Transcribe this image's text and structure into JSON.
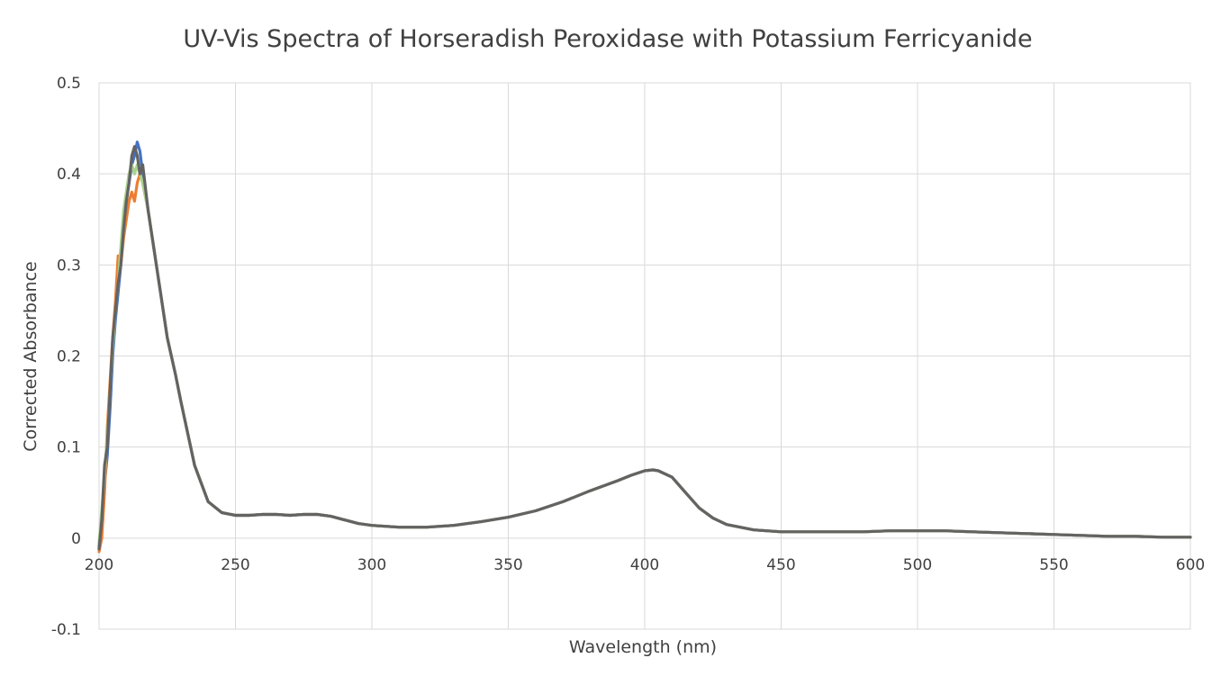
{
  "chart_data": {
    "type": "line",
    "title": "UV-Vis Spectra of Horseradish Peroxidase with Potassium Ferricyanide",
    "xlabel": "Wavelength (nm)",
    "ylabel": "Corrected Absorbance",
    "xlim": [
      200,
      600
    ],
    "ylim": [
      -0.1,
      0.5
    ],
    "x_ticks": [
      200,
      250,
      300,
      350,
      400,
      450,
      500,
      550,
      600
    ],
    "x_tick_labels": [
      "200",
      "250",
      "300",
      "350",
      "400",
      "450",
      "500",
      "550",
      "600"
    ],
    "y_ticks": [
      -0.1,
      0,
      0.1,
      0.2,
      0.3,
      0.4,
      0.5
    ],
    "y_tick_labels": [
      "-0.1",
      "0",
      "0.1",
      "0.2",
      "0.3",
      "0.4",
      "0.5"
    ],
    "grid": true,
    "legend": "none",
    "series": [
      {
        "color": "#4472c4",
        "x": [
          200,
          201,
          202,
          203,
          204,
          205,
          206,
          207,
          208,
          209,
          210,
          211,
          212,
          213,
          214,
          215,
          216,
          218,
          220,
          222,
          225,
          228,
          230,
          235,
          240,
          245,
          250,
          255,
          260,
          265,
          270,
          275,
          280,
          285,
          290,
          295,
          300,
          310,
          320,
          330,
          340,
          350,
          360,
          370,
          380,
          390,
          395,
          400,
          403,
          405,
          410,
          415,
          420,
          425,
          430,
          440,
          450,
          460,
          470,
          480,
          490,
          500,
          510,
          520,
          530,
          540,
          550,
          560,
          570,
          580,
          590,
          600
        ],
        "y": [
          -0.01,
          0.02,
          0.06,
          0.09,
          0.14,
          0.2,
          0.24,
          0.27,
          0.3,
          0.34,
          0.37,
          0.39,
          0.41,
          0.42,
          0.435,
          0.425,
          0.4,
          0.36,
          0.32,
          0.28,
          0.22,
          0.18,
          0.15,
          0.08,
          0.04,
          0.028,
          0.025,
          0.025,
          0.026,
          0.026,
          0.025,
          0.026,
          0.026,
          0.024,
          0.02,
          0.016,
          0.014,
          0.012,
          0.012,
          0.014,
          0.018,
          0.023,
          0.03,
          0.04,
          0.052,
          0.063,
          0.069,
          0.074,
          0.075,
          0.074,
          0.067,
          0.05,
          0.033,
          0.022,
          0.015,
          0.009,
          0.007,
          0.007,
          0.007,
          0.007,
          0.008,
          0.008,
          0.008,
          0.007,
          0.006,
          0.005,
          0.004,
          0.003,
          0.002,
          0.002,
          0.001,
          0.001
        ]
      },
      {
        "color": "#ed7d31",
        "x": [
          200,
          201,
          202,
          203,
          204,
          205,
          206,
          207,
          208,
          209,
          210,
          211,
          212,
          213,
          214,
          215,
          216,
          218,
          220,
          222,
          225,
          228,
          230,
          235,
          240,
          245,
          250,
          255,
          260,
          265,
          270,
          275,
          280,
          285,
          290,
          295,
          300,
          310,
          320,
          330,
          340,
          350,
          360,
          370,
          380,
          390,
          395,
          400,
          403,
          405,
          410,
          415,
          420,
          425,
          430,
          440,
          450,
          460,
          470,
          480,
          490,
          500,
          510,
          520,
          530,
          540,
          550,
          560,
          570,
          580,
          590,
          600
        ],
        "y": [
          -0.015,
          0.0,
          0.05,
          0.12,
          0.17,
          0.22,
          0.26,
          0.31,
          0.3,
          0.33,
          0.35,
          0.37,
          0.38,
          0.37,
          0.39,
          0.4,
          0.39,
          0.36,
          0.32,
          0.28,
          0.22,
          0.18,
          0.15,
          0.08,
          0.04,
          0.028,
          0.025,
          0.025,
          0.026,
          0.026,
          0.025,
          0.026,
          0.026,
          0.024,
          0.02,
          0.016,
          0.014,
          0.012,
          0.012,
          0.014,
          0.018,
          0.023,
          0.03,
          0.04,
          0.052,
          0.063,
          0.069,
          0.074,
          0.075,
          0.074,
          0.067,
          0.05,
          0.033,
          0.022,
          0.015,
          0.009,
          0.007,
          0.007,
          0.007,
          0.007,
          0.008,
          0.008,
          0.008,
          0.007,
          0.006,
          0.005,
          0.004,
          0.003,
          0.002,
          0.002,
          0.001,
          0.001
        ]
      },
      {
        "color": "#a9d18e",
        "x": [
          200,
          201,
          202,
          203,
          204,
          205,
          206,
          207,
          208,
          209,
          210,
          211,
          212,
          213,
          214,
          215,
          216,
          218,
          220,
          222,
          225,
          228,
          230,
          235,
          240,
          245,
          250,
          255,
          260,
          265,
          270,
          275,
          280,
          285,
          290,
          295,
          300,
          310,
          320,
          330,
          340,
          350,
          360,
          370,
          380,
          390,
          395,
          400,
          403,
          405,
          410,
          415,
          420,
          425,
          430,
          440,
          450,
          460,
          470,
          480,
          490,
          500,
          510,
          520,
          530,
          540,
          550,
          560,
          570,
          580,
          590,
          600
        ],
        "y": [
          -0.005,
          0.03,
          0.07,
          0.11,
          0.16,
          0.21,
          0.25,
          0.28,
          0.32,
          0.36,
          0.38,
          0.4,
          0.41,
          0.4,
          0.41,
          0.4,
          0.39,
          0.36,
          0.32,
          0.28,
          0.22,
          0.18,
          0.15,
          0.08,
          0.04,
          0.028,
          0.025,
          0.025,
          0.026,
          0.026,
          0.025,
          0.026,
          0.026,
          0.024,
          0.02,
          0.016,
          0.014,
          0.012,
          0.012,
          0.014,
          0.018,
          0.023,
          0.03,
          0.04,
          0.052,
          0.063,
          0.069,
          0.074,
          0.075,
          0.074,
          0.067,
          0.05,
          0.033,
          0.022,
          0.015,
          0.009,
          0.007,
          0.007,
          0.007,
          0.007,
          0.008,
          0.008,
          0.008,
          0.007,
          0.006,
          0.005,
          0.004,
          0.003,
          0.002,
          0.002,
          0.001,
          0.001
        ]
      },
      {
        "color": "#636363",
        "x": [
          200,
          201,
          202,
          203,
          204,
          205,
          206,
          207,
          208,
          209,
          210,
          211,
          212,
          213,
          214,
          215,
          216,
          218,
          220,
          222,
          225,
          228,
          230,
          235,
          240,
          245,
          250,
          255,
          260,
          265,
          270,
          275,
          280,
          285,
          290,
          295,
          300,
          310,
          320,
          330,
          340,
          350,
          360,
          370,
          380,
          390,
          395,
          400,
          403,
          405,
          410,
          415,
          420,
          425,
          430,
          440,
          450,
          460,
          470,
          480,
          490,
          500,
          510,
          520,
          530,
          540,
          550,
          560,
          570,
          580,
          590,
          600
        ],
        "y": [
          -0.012,
          0.02,
          0.08,
          0.1,
          0.16,
          0.22,
          0.25,
          0.28,
          0.3,
          0.34,
          0.37,
          0.39,
          0.42,
          0.43,
          0.42,
          0.4,
          0.41,
          0.36,
          0.32,
          0.28,
          0.22,
          0.18,
          0.15,
          0.08,
          0.04,
          0.028,
          0.025,
          0.025,
          0.026,
          0.026,
          0.025,
          0.026,
          0.026,
          0.024,
          0.02,
          0.016,
          0.014,
          0.012,
          0.012,
          0.014,
          0.018,
          0.023,
          0.03,
          0.04,
          0.052,
          0.063,
          0.069,
          0.074,
          0.075,
          0.074,
          0.067,
          0.05,
          0.033,
          0.022,
          0.015,
          0.009,
          0.007,
          0.007,
          0.007,
          0.007,
          0.008,
          0.008,
          0.008,
          0.007,
          0.006,
          0.005,
          0.004,
          0.003,
          0.002,
          0.002,
          0.001,
          0.001
        ]
      }
    ]
  }
}
